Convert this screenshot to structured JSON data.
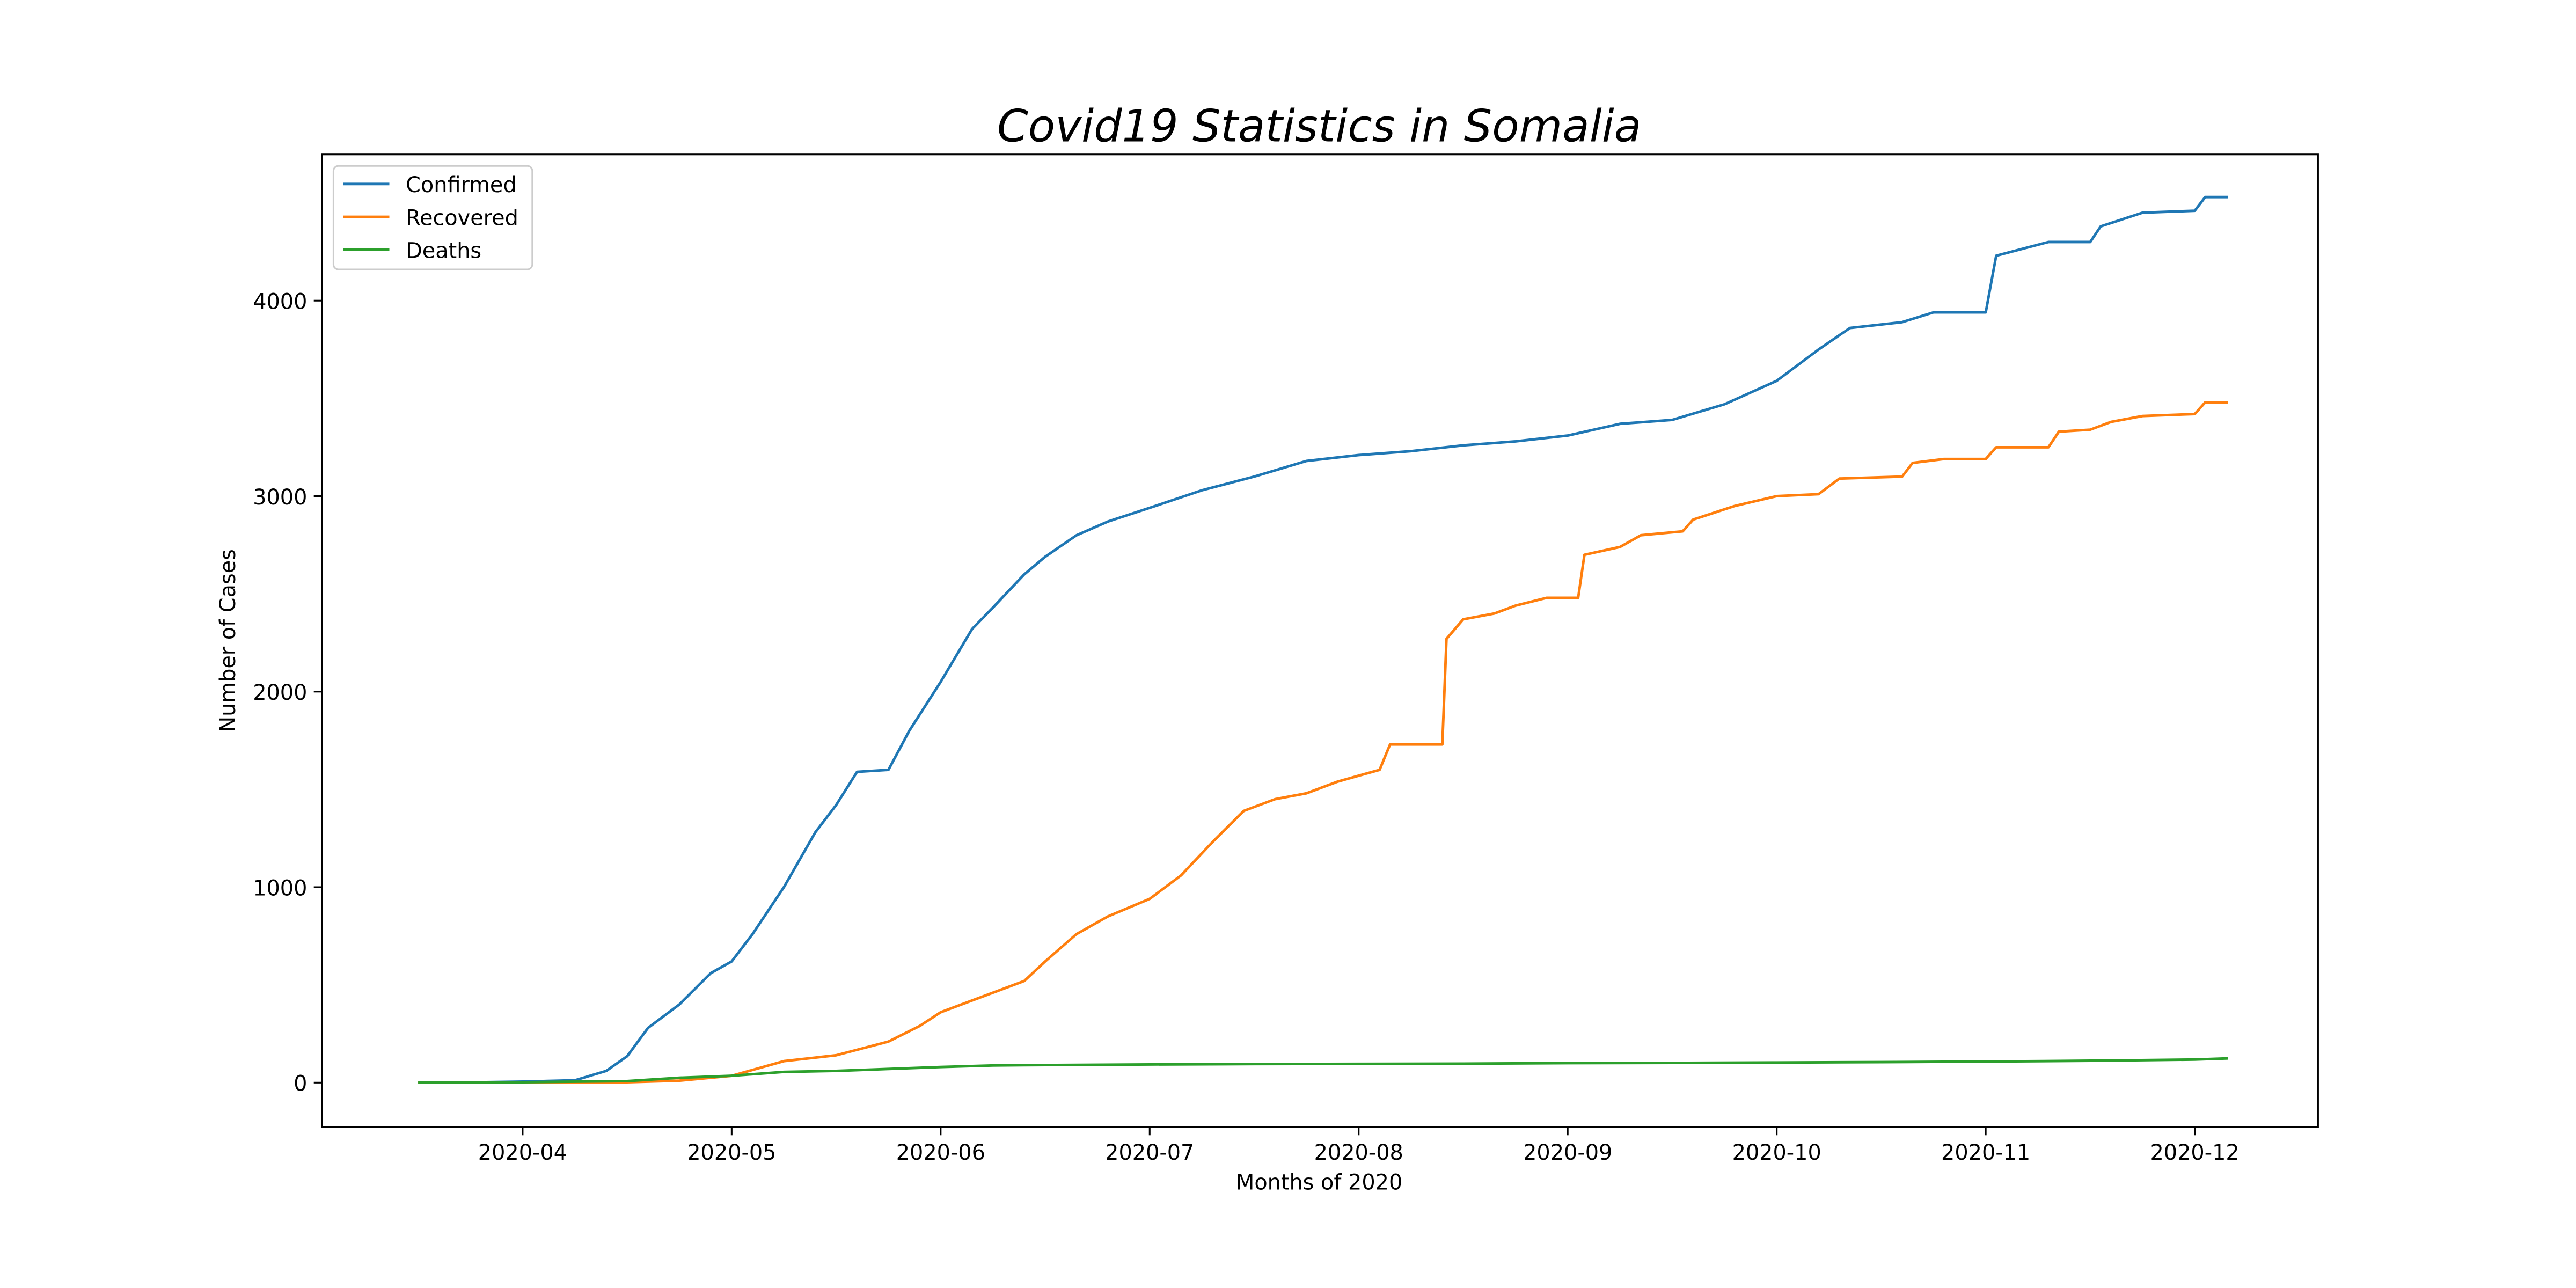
{
  "chart_data": {
    "type": "line",
    "title": "Covid19 Statistics in Somalia",
    "x_label": "Months of 2020",
    "y_label": "Number of Cases",
    "xlim": [
      3.04,
      12.59
    ],
    "ylim": [
      -227,
      4748
    ],
    "xticks": [
      {
        "value": 4,
        "label": "2020-04"
      },
      {
        "value": 5,
        "label": "2020-05"
      },
      {
        "value": 6,
        "label": "2020-06"
      },
      {
        "value": 7,
        "label": "2020-07"
      },
      {
        "value": 8,
        "label": "2020-08"
      },
      {
        "value": 9,
        "label": "2020-09"
      },
      {
        "value": 10,
        "label": "2020-10"
      },
      {
        "value": 11,
        "label": "2020-11"
      },
      {
        "value": 12,
        "label": "2020-12"
      }
    ],
    "yticks": [
      0,
      1000,
      2000,
      3000,
      4000
    ],
    "grid": false,
    "legend": "upper left",
    "series": [
      {
        "name": "Confirmed",
        "color": "#1f77b4",
        "x": [
          3.5,
          3.75,
          4.0,
          4.25,
          4.4,
          4.5,
          4.6,
          4.75,
          4.9,
          5.0,
          5.1,
          5.25,
          5.4,
          5.5,
          5.6,
          5.75,
          5.85,
          6.0,
          6.15,
          6.25,
          6.4,
          6.5,
          6.65,
          6.8,
          7.0,
          7.25,
          7.5,
          7.75,
          8.0,
          8.25,
          8.5,
          8.75,
          9.0,
          9.25,
          9.5,
          9.75,
          10.0,
          10.2,
          10.35,
          10.6,
          10.75,
          11.0,
          11.05,
          11.3,
          11.5,
          11.55,
          11.75,
          12.0,
          12.05,
          12.16
        ],
        "values": [
          0,
          1,
          5,
          12,
          60,
          135,
          280,
          400,
          560,
          620,
          760,
          1000,
          1280,
          1420,
          1590,
          1600,
          1800,
          2050,
          2320,
          2430,
          2600,
          2690,
          2800,
          2870,
          2940,
          3030,
          3100,
          3180,
          3210,
          3230,
          3260,
          3280,
          3310,
          3370,
          3390,
          3470,
          3590,
          3750,
          3860,
          3890,
          3940,
          3940,
          4230,
          4300,
          4300,
          4380,
          4450,
          4460,
          4530,
          4530
        ]
      },
      {
        "name": "Recovered",
        "color": "#ff7f0e",
        "x": [
          3.5,
          4.0,
          4.5,
          4.75,
          5.0,
          5.25,
          5.5,
          5.75,
          5.9,
          6.0,
          6.15,
          6.4,
          6.5,
          6.65,
          6.8,
          7.0,
          7.15,
          7.3,
          7.45,
          7.6,
          7.75,
          7.9,
          8.0,
          8.1,
          8.15,
          8.4,
          8.42,
          8.5,
          8.65,
          8.75,
          8.9,
          9.05,
          9.08,
          9.25,
          9.35,
          9.55,
          9.6,
          9.8,
          10.0,
          10.2,
          10.3,
          10.6,
          10.65,
          10.8,
          11.0,
          11.05,
          11.3,
          11.35,
          11.5,
          11.6,
          11.75,
          12.0,
          12.05,
          12.16
        ],
        "values": [
          0,
          0,
          2,
          10,
          35,
          110,
          140,
          210,
          290,
          360,
          420,
          520,
          620,
          760,
          850,
          940,
          1060,
          1230,
          1390,
          1450,
          1480,
          1540,
          1570,
          1600,
          1730,
          1730,
          2270,
          2370,
          2400,
          2440,
          2480,
          2480,
          2700,
          2740,
          2800,
          2820,
          2880,
          2950,
          3000,
          3010,
          3090,
          3100,
          3170,
          3190,
          3190,
          3250,
          3250,
          3330,
          3340,
          3380,
          3410,
          3420,
          3480,
          3480
        ]
      },
      {
        "name": "Deaths",
        "color": "#2ca02c",
        "x": [
          3.5,
          4.0,
          4.5,
          4.75,
          5.0,
          5.25,
          5.5,
          5.75,
          6.0,
          6.25,
          6.5,
          7.0,
          7.5,
          8.0,
          8.5,
          9.0,
          9.5,
          10.0,
          10.5,
          11.0,
          11.5,
          12.0,
          12.16
        ],
        "values": [
          0,
          2,
          8,
          25,
          35,
          55,
          60,
          70,
          80,
          88,
          90,
          93,
          95,
          96,
          97,
          100,
          101,
          103,
          105,
          108,
          112,
          118,
          124
        ]
      }
    ]
  }
}
